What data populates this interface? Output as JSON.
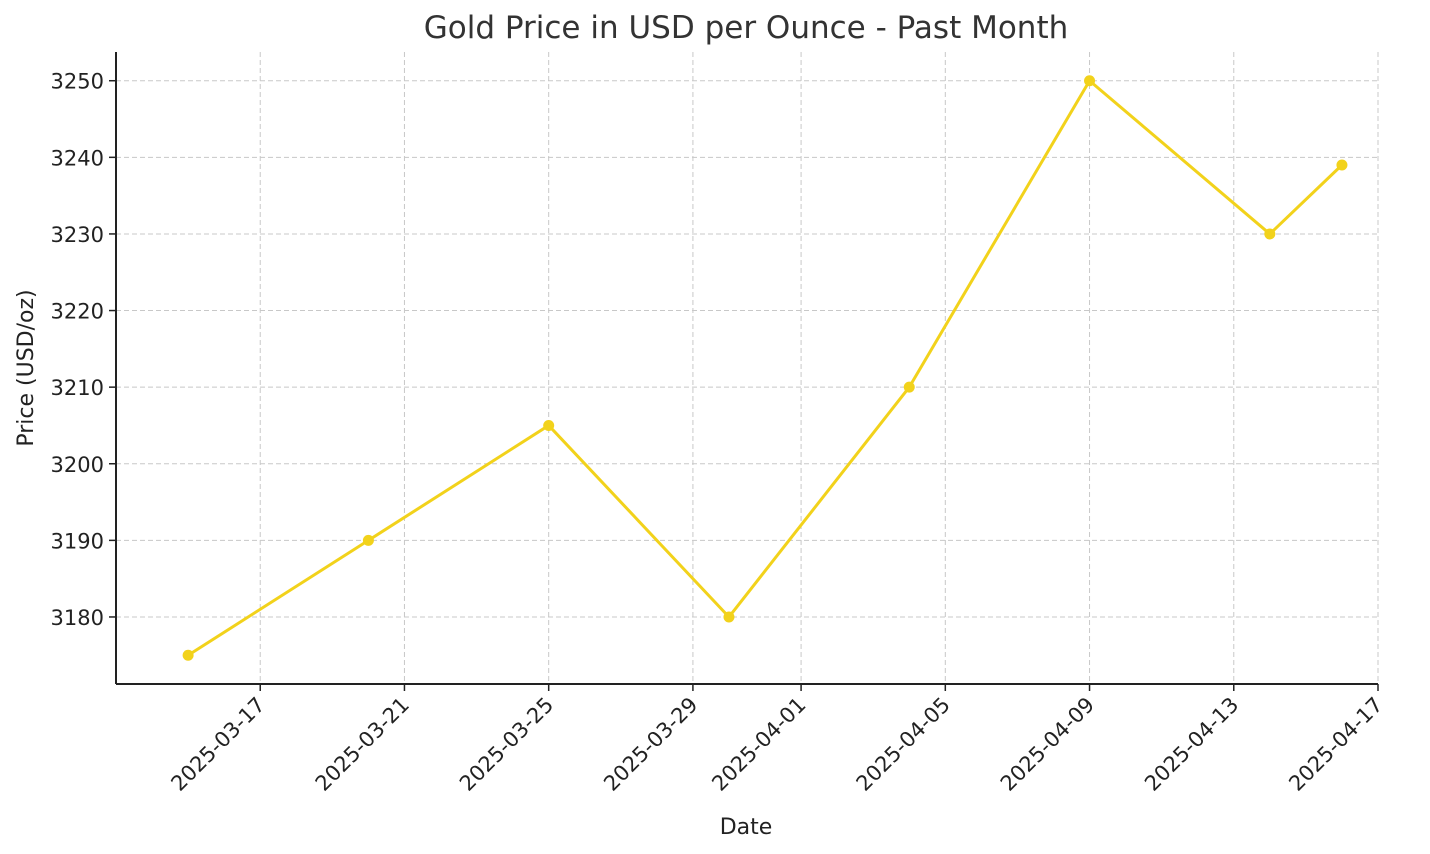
{
  "chart_data": {
    "type": "line",
    "title": "Gold Price in USD per Ounce - Past Month",
    "xlabel": "Date",
    "ylabel": "Price (USD/oz)",
    "x": [
      "2025-03-15",
      "2025-03-20",
      "2025-03-25",
      "2025-03-30",
      "2025-04-04",
      "2025-04-09",
      "2025-04-14",
      "2025-04-16"
    ],
    "series": [
      {
        "values": [
          3175,
          3190,
          3205,
          3180,
          3210,
          3250,
          3230,
          3239
        ],
        "color": "#f2d21b"
      }
    ],
    "x_ticks": [
      "2025-03-17",
      "2025-03-21",
      "2025-03-25",
      "2025-03-29",
      "2025-04-01",
      "2025-04-05",
      "2025-04-09",
      "2025-04-13",
      "2025-04-17"
    ],
    "y_ticks": [
      3180,
      3190,
      3200,
      3210,
      3220,
      3230,
      3240,
      3250
    ],
    "xlim": [
      "2025-03-13",
      "2025-04-17"
    ],
    "ylim": [
      3171.25,
      3253.75
    ],
    "grid": true,
    "legend": "none"
  }
}
